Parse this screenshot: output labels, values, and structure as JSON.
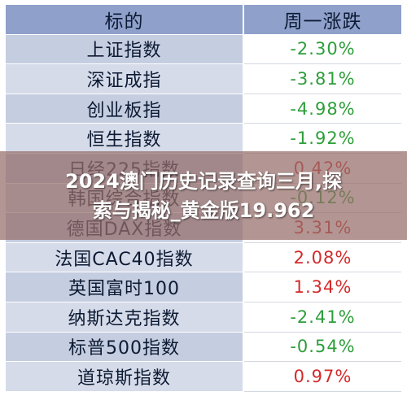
{
  "header": {
    "name": "标的",
    "change": "周一涨跌"
  },
  "rows": [
    {
      "name": "上证指数",
      "change": "-2.30%"
    },
    {
      "name": "深证成指",
      "change": "-3.81%"
    },
    {
      "name": "创业板指",
      "change": "-4.98%"
    },
    {
      "name": "恒生指数",
      "change": "-1.92%"
    },
    {
      "name": "日经225指数",
      "change": "0.42%"
    },
    {
      "name": "韩国综合指数",
      "change": "-0.12%"
    },
    {
      "name": "德国DAX指数",
      "change": "3.31%"
    },
    {
      "name": "法国CAC40指数",
      "change": "2.08%"
    },
    {
      "name": "英国富时100",
      "change": "1.34%"
    },
    {
      "name": "纳斯达克指数",
      "change": "-2.41%"
    },
    {
      "name": "标普500指数",
      "change": "-0.54%"
    },
    {
      "name": "道琼斯指数",
      "change": "0.97%"
    }
  ],
  "banner": {
    "line1": "2024澳门历史记录查询三月,探",
    "line2": "索与揭秘_黄金版19.962"
  },
  "colors": {
    "negative": "#2d9e3a",
    "positive": "#d42a2a",
    "header_bg": "#8fa1cb"
  }
}
